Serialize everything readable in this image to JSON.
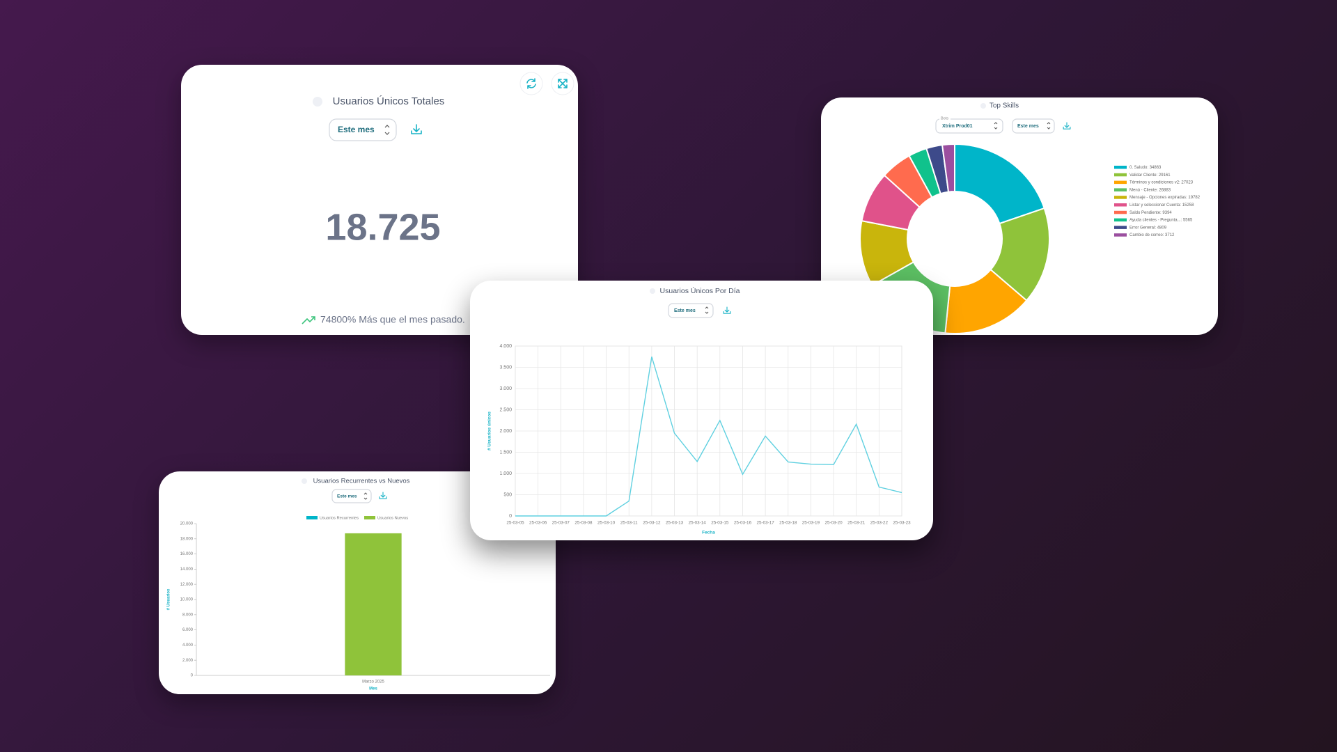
{
  "kpi_card": {
    "title": "Usuarios Únicos Totales",
    "period": "Este mes",
    "value": "18.725",
    "comparison": "74800% Más que el mes pasado."
  },
  "chart_data": [
    {
      "type": "pie",
      "title": "Top Skills",
      "bot_label": "Bots",
      "bot": "Xtrim Prod01",
      "period": "Este mes",
      "donut": true,
      "categories": [
        "0. Saludo",
        "Validar Cliente",
        "Términos y condiciones v2",
        "Menú - Cliente",
        "Mensaje - Opciones expiradas",
        "Listar y seleccionar Cuenta",
        "Saldo Pendiente",
        "Ayuda clientes - Pregunta...",
        "Error General",
        "Cambio de correo"
      ],
      "values": [
        34863,
        29161,
        27023,
        26883,
        19782,
        15258,
        9394,
        5565,
        4809,
        3712
      ],
      "colors": [
        "#00b5c9",
        "#8fc33a",
        "#ffa500",
        "#5cbf63",
        "#c9b50c",
        "#e0528a",
        "#ff6b4e",
        "#10c28c",
        "#3d4a8a",
        "#9b4f9f"
      ]
    },
    {
      "type": "line",
      "title": "Usuarios Únicos Por Día",
      "period": "Este mes",
      "x_label": "Fecha",
      "y_label": "# Usuarios únicos",
      "categories": [
        "25-03-05",
        "25-03-06",
        "25-03-07",
        "25-03-08",
        "25-03-10",
        "25-03-11",
        "25-03-12",
        "25-03-13",
        "25-03-14",
        "25-03-15",
        "25-03-16",
        "25-03-17",
        "25-03-18",
        "25-03-19",
        "25-03-20",
        "25-03-21",
        "25-03-22",
        "25-03-23"
      ],
      "values": [
        0,
        0,
        0,
        0,
        0,
        350,
        3750,
        1950,
        1280,
        2250,
        980,
        1880,
        1270,
        1220,
        1210,
        2160,
        680,
        550
      ],
      "color": "#5fd0e0",
      "grid": true,
      "ylim": [
        0,
        4000
      ],
      "yticks": [
        0,
        500,
        {
          "value": 1000,
          "label": "1.000"
        },
        {
          "value": 1500,
          "label": "1.500"
        },
        {
          "value": 2000,
          "label": "2.000"
        },
        {
          "value": 2500,
          "label": "2.500"
        },
        {
          "value": 3000,
          "label": "3.000"
        },
        {
          "value": 3500,
          "label": "3.500"
        },
        {
          "value": 4000,
          "label": "4.000"
        }
      ]
    },
    {
      "type": "bar",
      "title": "Usuarios Recurrentes vs Nuevos",
      "period": "Este mes",
      "x_label": "Mes",
      "y_label": "# Usuarios",
      "stacked": true,
      "categories": [
        "Marzo 2025"
      ],
      "series": [
        {
          "name": "Usuarios Recurrentes",
          "color": "#00b5c9",
          "values": [
            0
          ]
        },
        {
          "name": "Usuarios Nuevos",
          "color": "#8fc33a",
          "values": [
            18725
          ]
        }
      ],
      "ylim": [
        0,
        20000
      ],
      "yticks": [
        0,
        {
          "value": 2000,
          "label": "2.000"
        },
        {
          "value": 4000,
          "label": "4.000"
        },
        {
          "value": 6000,
          "label": "6.000"
        },
        {
          "value": 8000,
          "label": "8.000"
        },
        {
          "value": 10000,
          "label": "10.000"
        },
        {
          "value": 12000,
          "label": "12.000"
        },
        {
          "value": 14000,
          "label": "14.000"
        },
        {
          "value": 16000,
          "label": "16.000"
        },
        {
          "value": 18000,
          "label": "18.000"
        },
        {
          "value": 20000,
          "label": "20.000"
        }
      ]
    }
  ]
}
